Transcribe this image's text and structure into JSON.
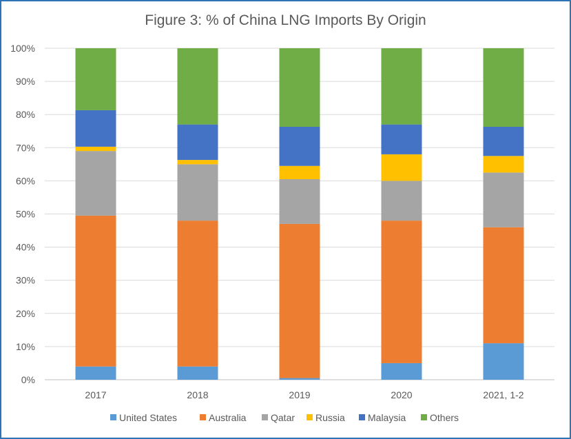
{
  "chart_data": {
    "type": "bar",
    "stacked": true,
    "percent": true,
    "title": "Figure 3: % of China LNG Imports By Origin",
    "categories": [
      "2017",
      "2018",
      "2019",
      "2020",
      "2021, 1-2"
    ],
    "series": [
      {
        "name": "United States",
        "color": "#5b9bd5",
        "values": [
          4,
          4,
          0.5,
          5,
          11
        ]
      },
      {
        "name": "Australia",
        "color": "#ed7d31",
        "values": [
          45.5,
          44,
          46.5,
          43,
          35
        ]
      },
      {
        "name": "Qatar",
        "color": "#a5a5a5",
        "values": [
          19.5,
          17,
          13.5,
          12,
          16.5
        ]
      },
      {
        "name": "Russia",
        "color": "#ffc000",
        "values": [
          1.3,
          1.3,
          4,
          8,
          5
        ]
      },
      {
        "name": "Malaysia",
        "color": "#4472c4",
        "values": [
          11,
          10.7,
          11.8,
          9,
          8.8
        ]
      },
      {
        "name": "Others",
        "color": "#70ad47",
        "values": [
          18.7,
          23,
          23.7,
          23,
          23.7
        ]
      }
    ],
    "yticks": [
      "0%",
      "10%",
      "20%",
      "30%",
      "40%",
      "50%",
      "60%",
      "70%",
      "80%",
      "90%",
      "100%"
    ],
    "ylim": [
      0,
      100
    ],
    "grid": true,
    "legend_position": "bottom"
  }
}
